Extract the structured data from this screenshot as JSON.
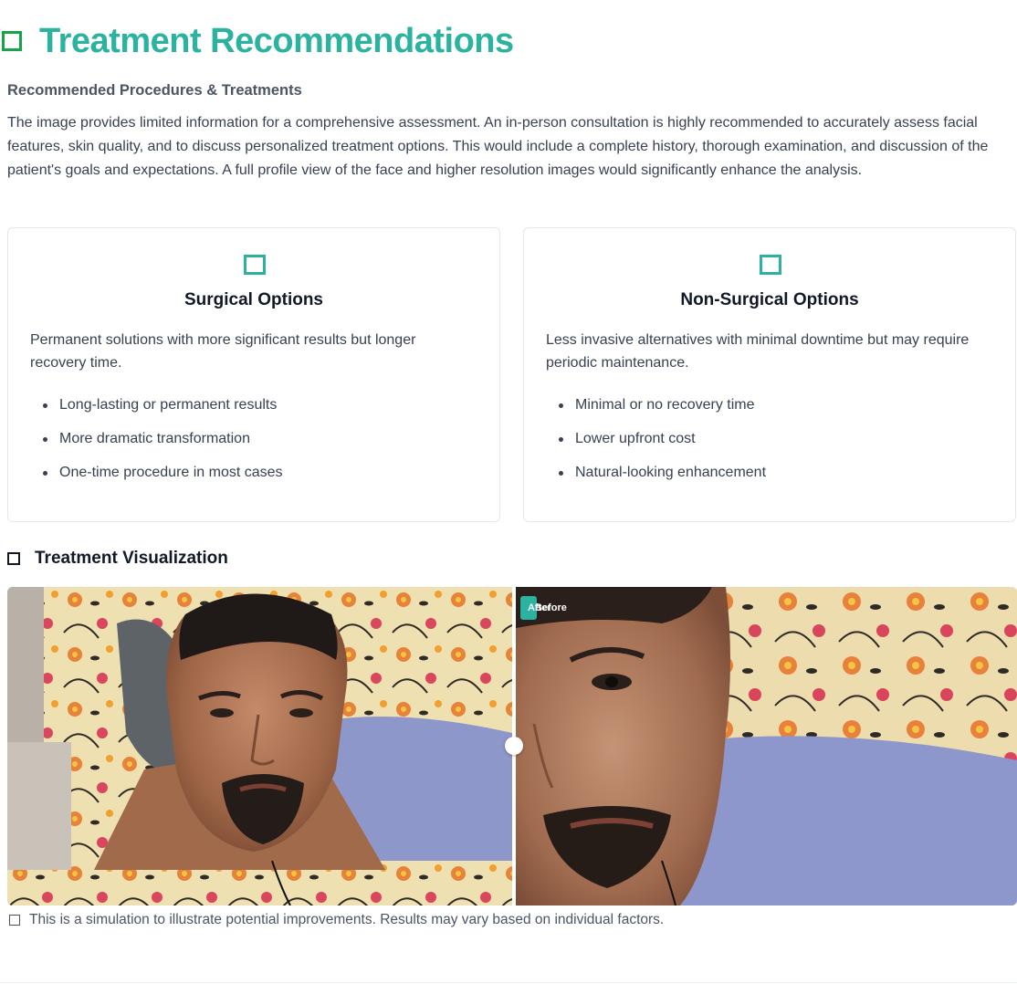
{
  "header": {
    "title": "Treatment Recommendations",
    "icon": "square-outline-icon",
    "accent_color": "#2bb3a0"
  },
  "recommendations": {
    "heading": "Recommended Procedures & Treatments",
    "intro": "The image provides limited information for a comprehensive assessment. An in-person consultation is highly recommended to accurately assess facial features, skin quality, and to discuss personalized treatment options. This would include a complete history, thorough examination, and discussion of the patient's goals and expectations. A full profile view of the face and higher resolution images would significantly enhance the analysis."
  },
  "cards": [
    {
      "title": "Surgical Options",
      "description": "Permanent solutions with more significant results but longer recovery time.",
      "bullets": [
        "Long-lasting or permanent results",
        "More dramatic transformation",
        "One-time procedure in most cases"
      ]
    },
    {
      "title": "Non-Surgical Options",
      "description": "Less invasive alternatives with minimal downtime but may require periodic maintenance.",
      "bullets": [
        "Minimal or no recovery time",
        "Lower upfront cost",
        "Natural-looking enhancement"
      ]
    }
  ],
  "visualization": {
    "title": "Treatment Visualization",
    "label_after": "After",
    "label_before": "Before",
    "disclaimer": "This is a simulation to illustrate potential improvements. Results may vary based on individual factors."
  }
}
